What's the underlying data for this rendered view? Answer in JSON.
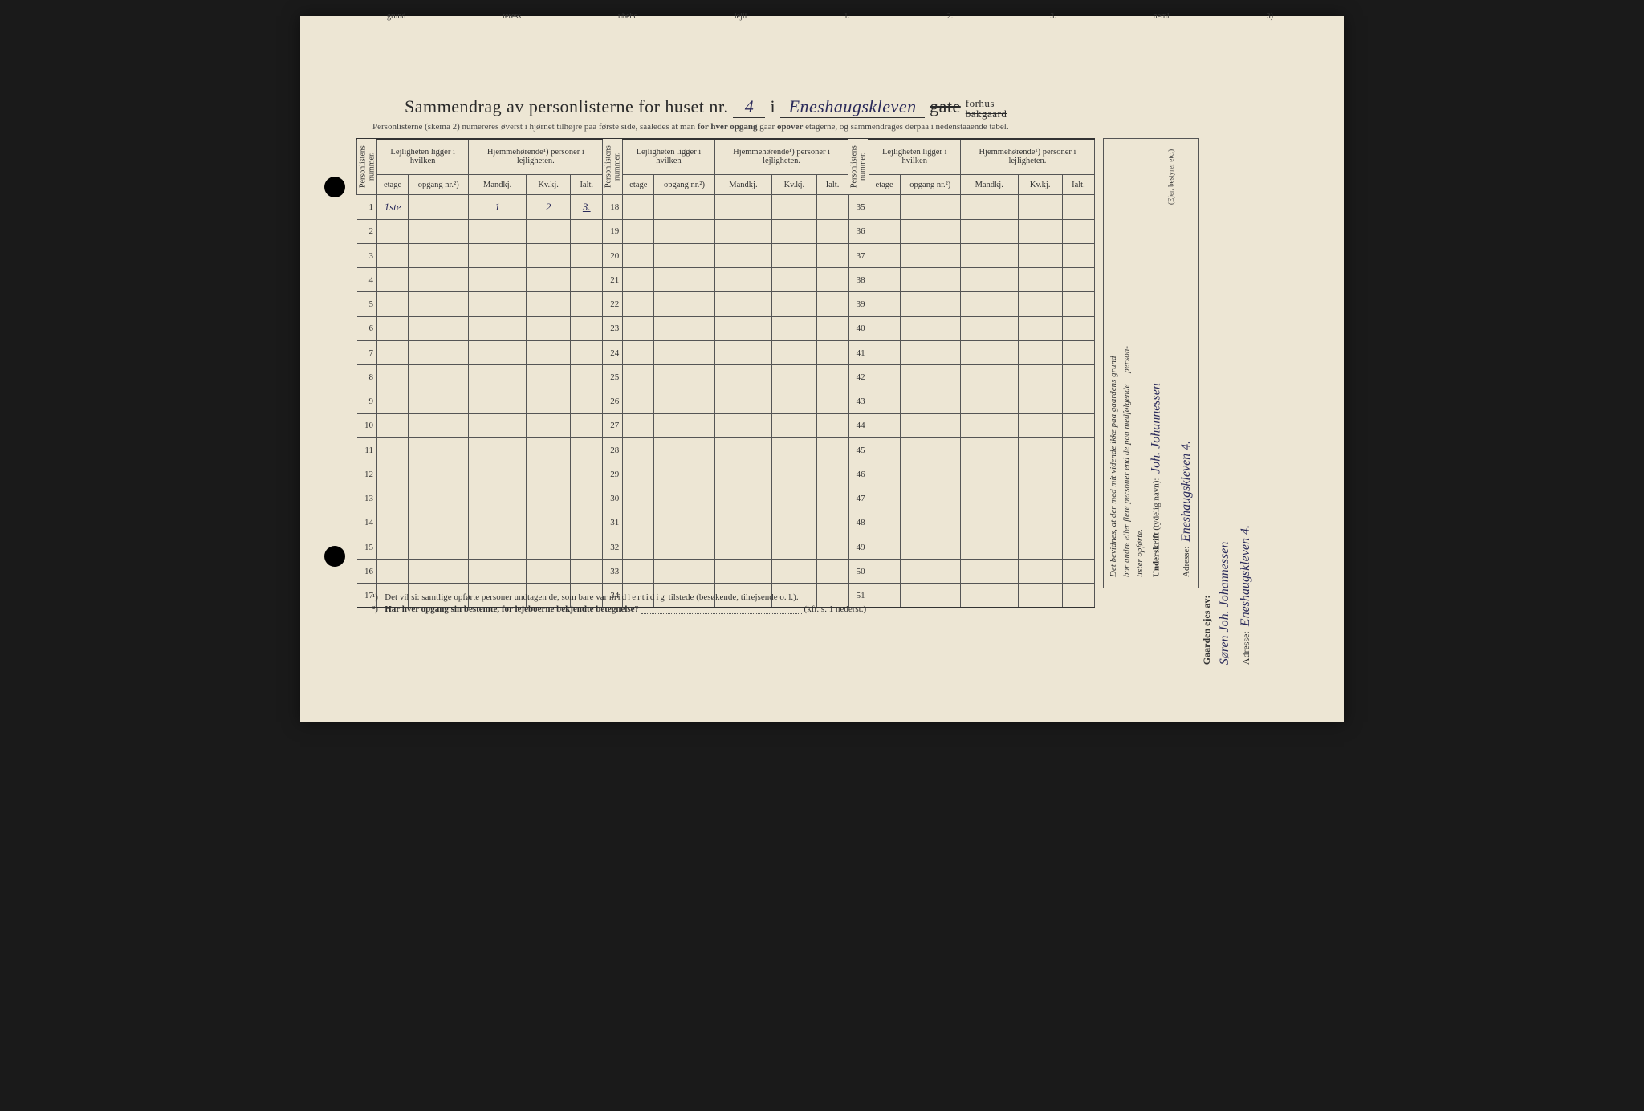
{
  "top_tabs": [
    "grund",
    "teress",
    "ubebc",
    "lejli",
    "1.",
    "2.",
    "3.",
    "neml",
    "3)"
  ],
  "title": {
    "prefix": "Sammendrag av personlisterne for huset nr.",
    "house_nr": "4",
    "mid": "i",
    "street": "Eneshaugskleven",
    "gate": "gate",
    "forhus": "forhus",
    "bakgaard": "bakgaard"
  },
  "subtitle_parts": {
    "a": "Personlisterne (skema 2) numereres øverst i hjørnet tilhøjre paa første side, saaledes at man",
    "b": "for hver opgang",
    "c": "gaar",
    "d": "opover",
    "e": "etagerne, og sammendrages derpaa i nedenstaaende tabel."
  },
  "col_headers": {
    "personlistens": "Personlistens nummer.",
    "lejl_group": "Lejligheten ligger i hvilken",
    "hjem_group": "Hjemmehørende¹) personer i lejligheten.",
    "etage": "etage",
    "opgang": "opgang nr.²)",
    "mandkj": "Mandkj.",
    "kvkj": "Kv.kj.",
    "ialt": "Ialt."
  },
  "row_start": {
    "c1": 1,
    "c2": 18,
    "c3": 35
  },
  "row_count": 17,
  "data_row1": {
    "etage": "1ste",
    "mandkj": "1",
    "kvkj": "2",
    "ialt": "3."
  },
  "footnotes": {
    "f1_pre": "¹)",
    "f1": "Det vil si: samtlige opførte personer undtagen de, som bare var",
    "f1_mid": "midlertidig",
    "f1_post": "tilstede (besøkende, tilrejsende o. l.).",
    "f2_pre": "²)",
    "f2": "Har hver opgang sin bestemte, for lejeboerne bekjendte betegnelse?",
    "f2_ref": "(kfr. s. 1 nederst.)"
  },
  "side_top": {
    "line1_a": "Det bevidnes, at der med mit vidende ikke paa gaardens grund",
    "line1_b": "bor andre eller flere personer end de paa medfølgende",
    "line1_c": "person-",
    "line1_d": "lister opførte.",
    "underskrift_label": "Underskrift",
    "underskrift_note": "(tydelig navn):",
    "signature": "Joh. Johannessen",
    "role": "(Ejer, bestyrer etc.)",
    "adresse_label": "Adresse:",
    "adresse_value": "Eneshaugskleven 4."
  },
  "side_bottom": {
    "label": "Gaarden ejes av:",
    "owner": "Søren Joh. Johannessen",
    "adresse_label": "Adresse:",
    "adresse_value": "Eneshaugskleven 4."
  },
  "colors": {
    "paper": "#ede6d4",
    "ink": "#2a2a2a",
    "hand": "#2a2a5a",
    "border": "#555555"
  }
}
